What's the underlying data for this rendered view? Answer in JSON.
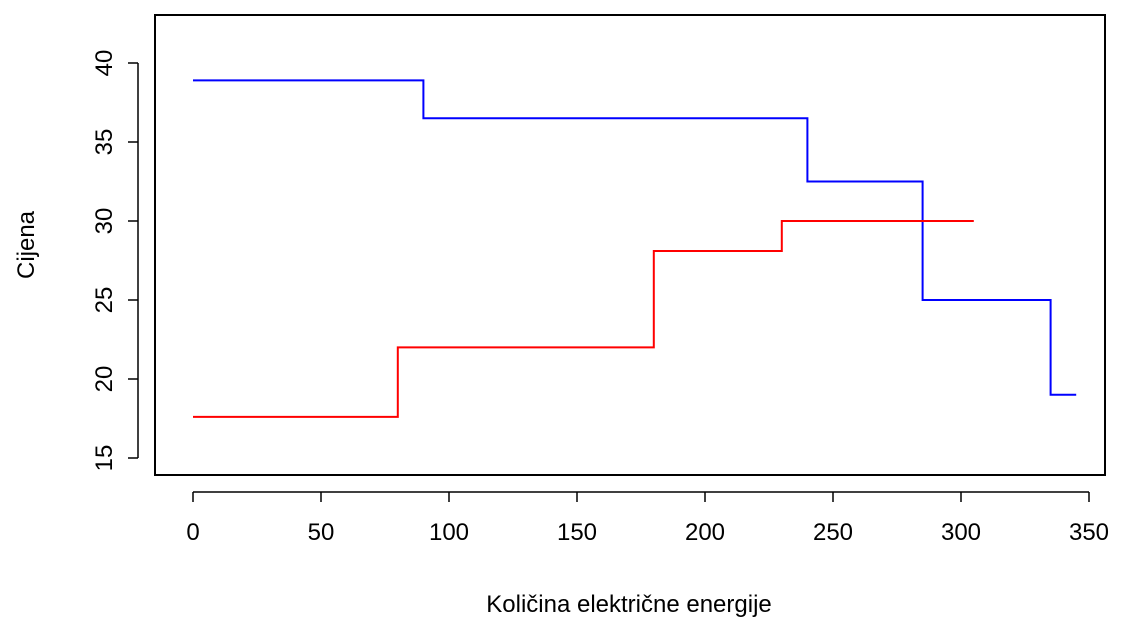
{
  "chart_data": {
    "type": "line",
    "step": true,
    "title": "",
    "xlabel": "Količina električne energije",
    "ylabel": "Cijena",
    "xlim": [
      0,
      350
    ],
    "ylim": [
      15,
      40
    ],
    "xticks": [
      0,
      50,
      100,
      150,
      200,
      250,
      300,
      350
    ],
    "yticks": [
      15,
      20,
      25,
      30,
      35,
      40
    ],
    "grid": false,
    "series": [
      {
        "color": "#0000ff",
        "x": [
          0,
          90,
          90,
          240,
          240,
          285,
          285,
          335,
          335,
          345
        ],
        "y": [
          38.9,
          38.9,
          36.5,
          36.5,
          32.5,
          32.5,
          25,
          25,
          19,
          19
        ]
      },
      {
        "color": "#ff0000",
        "x": [
          0,
          80,
          80,
          180,
          180,
          230,
          230,
          305
        ],
        "y": [
          17.6,
          17.6,
          22,
          22,
          28.1,
          28.1,
          30,
          30
        ]
      }
    ]
  }
}
